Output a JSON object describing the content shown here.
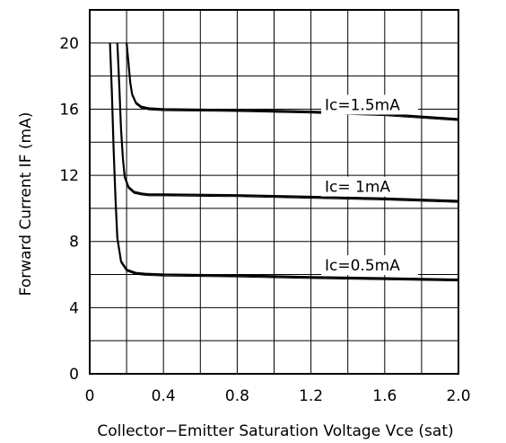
{
  "chart_data": {
    "type": "line",
    "title": "",
    "xlabel": "Collector−Emitter Saturation Voltage Vce (sat)",
    "ylabel": "Forward Current IF (mA)",
    "xlim": [
      0,
      2.0
    ],
    "ylim": [
      0,
      22
    ],
    "grid": true,
    "x_ticks": [
      "0",
      "0.4",
      "0.8",
      "1.2",
      "1.6",
      "2.0"
    ],
    "y_ticks": [
      "0",
      "4",
      "8",
      "12",
      "16",
      "20"
    ],
    "series": [
      {
        "name": "Ic=0.5mA",
        "x": [
          0.11,
          0.12,
          0.13,
          0.14,
          0.15,
          0.17,
          0.2,
          0.25,
          0.3,
          0.4,
          0.8,
          1.2,
          1.6,
          2.0
        ],
        "y": [
          20,
          17,
          13.5,
          10.5,
          8.2,
          6.8,
          6.3,
          6.1,
          6.05,
          6.0,
          5.95,
          5.85,
          5.78,
          5.7
        ]
      },
      {
        "name": "Ic= 1mA",
        "x": [
          0.15,
          0.16,
          0.17,
          0.18,
          0.19,
          0.21,
          0.24,
          0.28,
          0.32,
          0.4,
          0.8,
          1.2,
          1.6,
          2.0
        ],
        "y": [
          20,
          17.5,
          14.8,
          13,
          11.9,
          11.3,
          11.0,
          10.9,
          10.85,
          10.85,
          10.8,
          10.7,
          10.6,
          10.45
        ]
      },
      {
        "name": "Ic=1.5mA",
        "x": [
          0.2,
          0.21,
          0.22,
          0.23,
          0.25,
          0.28,
          0.32,
          0.4,
          0.8,
          1.2,
          1.6,
          2.0
        ],
        "y": [
          20,
          18.8,
          17.6,
          16.9,
          16.4,
          16.15,
          16.05,
          16.0,
          15.95,
          15.85,
          15.7,
          15.4
        ]
      }
    ]
  }
}
